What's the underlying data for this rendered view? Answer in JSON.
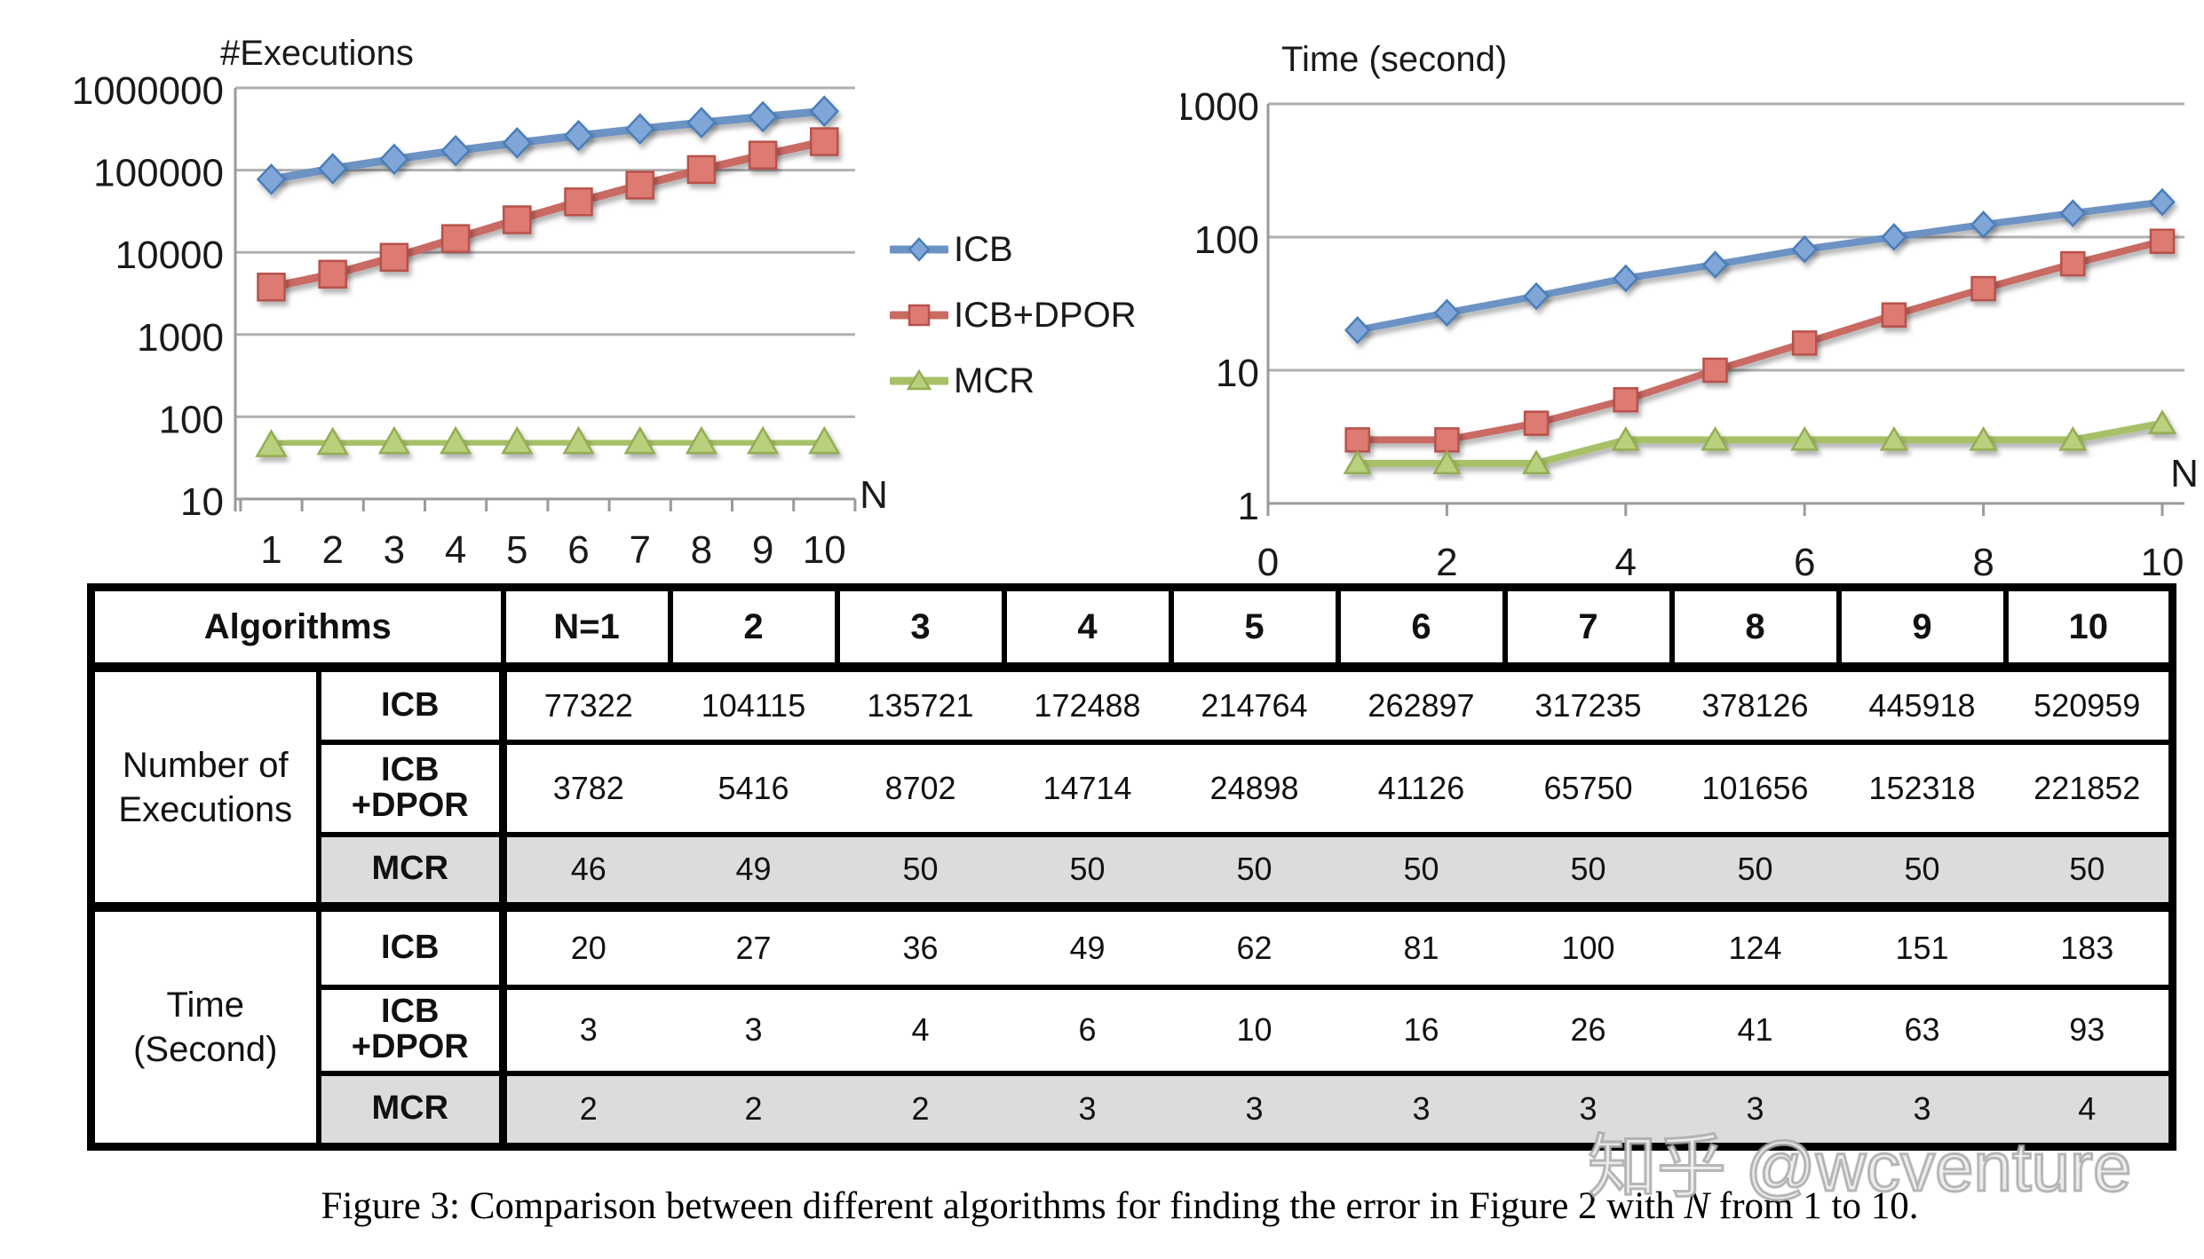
{
  "style": {
    "grid_color": "#b0b0b0",
    "axis_color": "#9a9a9a",
    "text_color": "#1a1a1a",
    "table_row_gray": "#dcdcdc"
  },
  "chart_data": [
    {
      "type": "line",
      "title": "#Executions",
      "xlabel": "N",
      "y_scale": "log",
      "ylim": [
        10,
        1000000
      ],
      "grid": true,
      "legend_position": "right-of-first-chart",
      "x": [
        1,
        2,
        3,
        4,
        5,
        6,
        7,
        8,
        9,
        10
      ],
      "x_ticks": [
        "1",
        "2",
        "3",
        "4",
        "5",
        "6",
        "7",
        "8",
        "9",
        "10"
      ],
      "y_ticks": [
        "1000000",
        "100000",
        "10000",
        "1000",
        "100",
        "10"
      ],
      "series": [
        {
          "name": "ICB",
          "marker": "diamond",
          "line": "#6c93c4",
          "marker_fill": "#7fa6d7",
          "marker_stroke": "#4a7ebb",
          "values": [
            77322,
            104115,
            135721,
            172488,
            214764,
            262897,
            317235,
            378126,
            445918,
            520959
          ]
        },
        {
          "name": "ICB+DPOR",
          "marker": "square",
          "line": "#c96a63",
          "marker_fill": "#dd7a72",
          "marker_stroke": "#b8514c",
          "values": [
            3782,
            5416,
            8702,
            14714,
            24898,
            41126,
            65750,
            101656,
            152318,
            221852
          ]
        },
        {
          "name": "MCR",
          "marker": "triangle",
          "line": "#a8c168",
          "marker_fill": "#b9d07c",
          "marker_stroke": "#94ad53",
          "values": [
            46,
            49,
            50,
            50,
            50,
            50,
            50,
            50,
            50,
            50
          ]
        }
      ]
    },
    {
      "type": "line",
      "title": "Time (second)",
      "xlabel": "N",
      "y_scale": "log",
      "ylim": [
        1,
        1000
      ],
      "grid": true,
      "x": [
        1,
        2,
        3,
        4,
        5,
        6,
        7,
        8,
        9,
        10
      ],
      "x_ticks": [
        "0",
        "2",
        "4",
        "6",
        "8",
        "10"
      ],
      "y_ticks": [
        "1000",
        "100",
        "10",
        "1"
      ],
      "series": [
        {
          "name": "ICB",
          "marker": "diamond",
          "line": "#6c93c4",
          "marker_fill": "#7fa6d7",
          "marker_stroke": "#4a7ebb",
          "values": [
            20,
            27,
            36,
            49,
            62,
            81,
            100,
            124,
            151,
            183
          ]
        },
        {
          "name": "ICB+DPOR",
          "marker": "square",
          "line": "#c96a63",
          "marker_fill": "#dd7a72",
          "marker_stroke": "#b8514c",
          "values": [
            3,
            3,
            4,
            6,
            10,
            16,
            26,
            41,
            63,
            93
          ]
        },
        {
          "name": "MCR",
          "marker": "triangle",
          "line": "#a8c168",
          "marker_fill": "#b9d07c",
          "marker_stroke": "#94ad53",
          "values": [
            2,
            2,
            2,
            3,
            3,
            3,
            3,
            3,
            3,
            4
          ]
        }
      ]
    }
  ],
  "table": {
    "header": {
      "label": "Algorithms",
      "columns": [
        "N=1",
        "2",
        "3",
        "4",
        "5",
        "6",
        "7",
        "8",
        "9",
        "10"
      ]
    },
    "groups": [
      {
        "label": "Number of Executions",
        "rows": [
          {
            "algorithm": "ICB",
            "values": [
              "77322",
              "104115",
              "135721",
              "172488",
              "214764",
              "262897",
              "317235",
              "378126",
              "445918",
              "520959"
            ]
          },
          {
            "algorithm": "ICB\n+DPOR",
            "values": [
              "3782",
              "5416",
              "8702",
              "14714",
              "24898",
              "41126",
              "65750",
              "101656",
              "152318",
              "221852"
            ]
          },
          {
            "algorithm": "MCR",
            "highlight": true,
            "values": [
              "46",
              "49",
              "50",
              "50",
              "50",
              "50",
              "50",
              "50",
              "50",
              "50"
            ]
          }
        ]
      },
      {
        "label": "Time (Second)",
        "rows": [
          {
            "algorithm": "ICB",
            "values": [
              "20",
              "27",
              "36",
              "49",
              "62",
              "81",
              "100",
              "124",
              "151",
              "183"
            ]
          },
          {
            "algorithm": "ICB\n+DPOR",
            "values": [
              "3",
              "3",
              "4",
              "6",
              "10",
              "16",
              "26",
              "41",
              "63",
              "93"
            ]
          },
          {
            "algorithm": "MCR",
            "highlight": true,
            "values": [
              "2",
              "2",
              "2",
              "3",
              "3",
              "3",
              "3",
              "3",
              "3",
              "4"
            ]
          }
        ]
      }
    ]
  },
  "caption": {
    "prefix": "Figure 3: Comparison between different algorithms for finding the error in Figure 2 with ",
    "emphasis": "N",
    "suffix": " from 1 to 10."
  },
  "watermark": {
    "text": "知乎 @wcventure"
  }
}
